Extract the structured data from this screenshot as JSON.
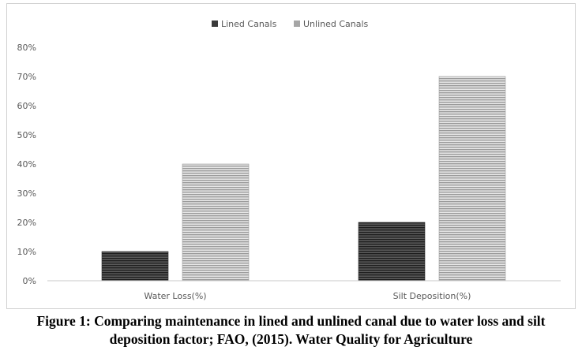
{
  "chart_data": {
    "type": "bar",
    "categories": [
      "Water Loss(%)",
      "Silt Deposition(%)"
    ],
    "series": [
      {
        "name": "Lined Canals",
        "values": [
          10,
          20
        ],
        "color": "#3a3a3a",
        "pattern": "horizontal-stripes-dark"
      },
      {
        "name": "Unlined Canals",
        "values": [
          40,
          70
        ],
        "color": "#a6a6a6",
        "pattern": "horizontal-stripes-light"
      }
    ],
    "yticks": [
      "0%",
      "10%",
      "20%",
      "30%",
      "40%",
      "50%",
      "60%",
      "70%",
      "80%"
    ],
    "ylim": [
      0,
      80
    ],
    "unit": "%",
    "legend_position": "top-center",
    "grid": false
  },
  "caption": {
    "line1": "Figure 1: Comparing maintenance in lined and unlined canal due to water loss and silt",
    "line2": "deposition factor; FAO, (2015). Water Quality for Agriculture"
  }
}
